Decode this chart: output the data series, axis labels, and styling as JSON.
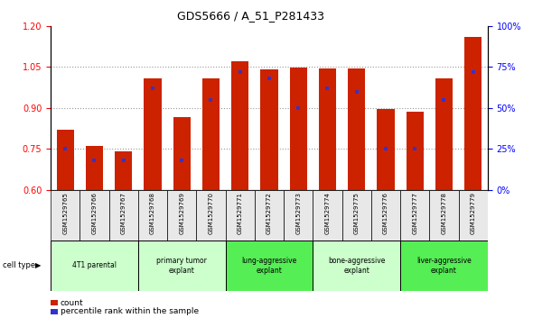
{
  "title": "GDS5666 / A_51_P281433",
  "samples": [
    "GSM1529765",
    "GSM1529766",
    "GSM1529767",
    "GSM1529768",
    "GSM1529769",
    "GSM1529770",
    "GSM1529771",
    "GSM1529772",
    "GSM1529773",
    "GSM1529774",
    "GSM1529775",
    "GSM1529776",
    "GSM1529777",
    "GSM1529778",
    "GSM1529779"
  ],
  "counts": [
    0.82,
    0.76,
    0.74,
    1.01,
    0.865,
    1.01,
    1.07,
    1.04,
    1.048,
    1.045,
    1.045,
    0.895,
    0.885,
    1.01,
    1.16
  ],
  "percentiles": [
    25,
    18,
    18,
    62,
    18,
    55,
    72,
    68,
    50,
    62,
    60,
    25,
    25,
    55,
    72
  ],
  "ylim": [
    0.6,
    1.2
  ],
  "yticks_left": [
    0.6,
    0.75,
    0.9,
    1.05,
    1.2
  ],
  "yticks_right": [
    0,
    25,
    50,
    75,
    100
  ],
  "ytick_labels_right": [
    "0%",
    "25%",
    "50%",
    "75%",
    "100%"
  ],
  "bar_color": "#cc2200",
  "percentile_color": "#3333cc",
  "grid_color": "#999999",
  "cell_types": [
    {
      "label": "4T1 parental",
      "start": 0,
      "end": 3,
      "color": "#ccffcc"
    },
    {
      "label": "primary tumor\nexplant",
      "start": 3,
      "end": 6,
      "color": "#ccffcc"
    },
    {
      "label": "lung-aggressive\nexplant",
      "start": 6,
      "end": 9,
      "color": "#55ee55"
    },
    {
      "label": "bone-aggressive\nexplant",
      "start": 9,
      "end": 12,
      "color": "#ccffcc"
    },
    {
      "label": "liver-aggressive\nexplant",
      "start": 12,
      "end": 15,
      "color": "#55ee55"
    }
  ],
  "legend_count_label": "count",
  "legend_percentile_label": "percentile rank within the sample",
  "cell_type_label": "cell type",
  "bg_color": "#e8e8e8"
}
